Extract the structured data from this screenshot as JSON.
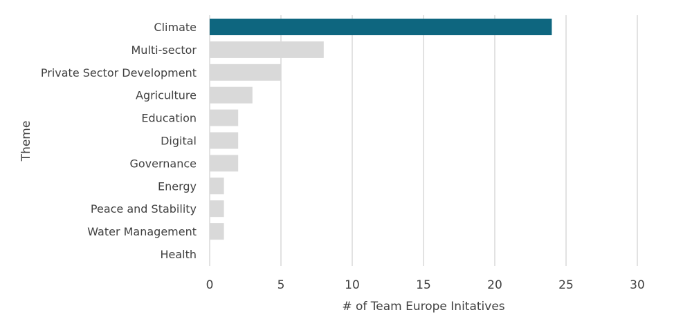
{
  "chart_data": {
    "type": "bar",
    "orientation": "horizontal",
    "categories": [
      "Climate",
      "Multi-sector",
      "Private Sector Development",
      "Agriculture",
      "Education",
      "Digital",
      "Governance",
      "Energy",
      "Peace and Stability",
      "Water Management",
      "Health"
    ],
    "values": [
      24,
      8,
      5,
      3,
      2,
      2,
      2,
      1,
      1,
      1,
      0
    ],
    "highlight_index": 0,
    "xlabel": "# of Team Europe Initatives",
    "ylabel": "Theme",
    "xlim": [
      0,
      30
    ],
    "xticks": [
      0,
      5,
      10,
      15,
      20,
      25,
      30
    ],
    "grid": true,
    "colors": {
      "highlight": "#0e667f",
      "default": "#d9d9d9",
      "grid": "#d9d9d9",
      "text": "#404040"
    }
  }
}
